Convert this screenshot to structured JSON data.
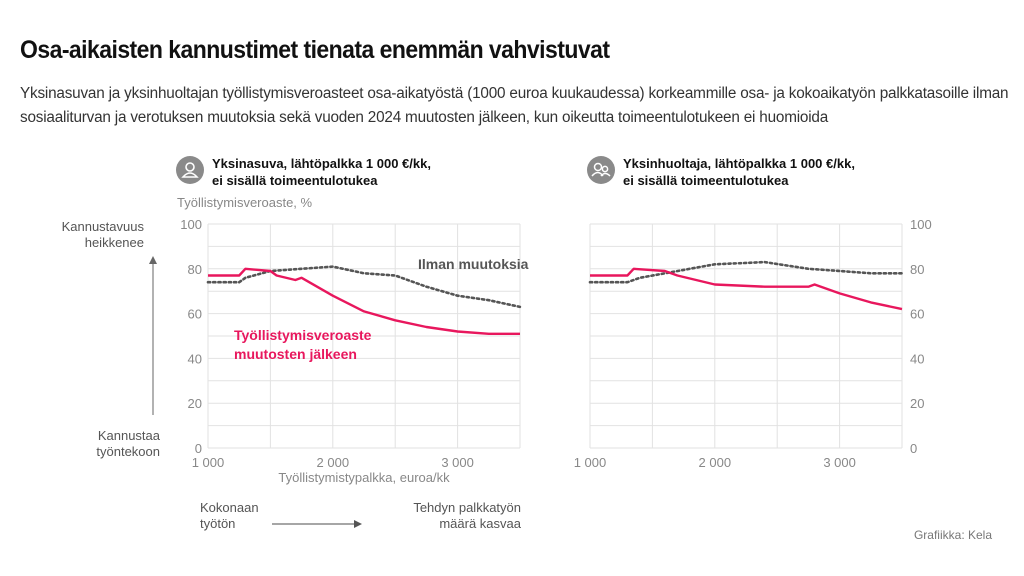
{
  "title": "Osa-aikaisten kannustimet tienata enemmän vahvistuvat",
  "subtitle": "Yksinasuvan ja yksinhuoltajan työllistymisveroasteet osa-aikatyöstä (1000 euroa kuukaudessa) korkeammille osa- ja kokoaikatyön palkkatasoille ilman sosiaaliturvan ja verotuksen muutoksia sekä vuoden 2024 muutosten jälkeen, kun oikeutta toimeentulotukeen ei huomioida",
  "y_axis_label": "Työllistymisveroaste, %",
  "x_axis_label": "Työllistymistypalkka, euroa/kk",
  "side_top": [
    "Kannustavuus",
    "heikkenee"
  ],
  "side_bottom": [
    "Kannustaa",
    "työntekoon"
  ],
  "bottom_left": [
    "Kokonaan",
    "työtön"
  ],
  "bottom_right": [
    "Tehdyn palkkatyön",
    "määrä kasvaa"
  ],
  "credit": "Grafiikka: Kela",
  "colors": {
    "after": "#e8175d",
    "before": "#555555",
    "grid": "#e2e2e2",
    "icon": "#8a8a8a"
  },
  "chart_data": [
    {
      "type": "line",
      "title": [
        "Yksinasuva, lähtöpalkka 1 000 €/kk,",
        "ei sisällä toimeentulotukea"
      ],
      "icon": "person-icon",
      "xlim": [
        1000,
        3500
      ],
      "ylim": [
        0,
        100
      ],
      "x_ticks": [
        1000,
        2000,
        3000
      ],
      "x_tick_labels": [
        "1 000",
        "2 000",
        "3 000"
      ],
      "y_ticks": [
        0,
        20,
        40,
        60,
        80,
        100
      ],
      "y_tick_labels": [
        "0",
        "20",
        "40",
        "60",
        "80",
        "100"
      ],
      "y_axis_side": "left",
      "grid": true,
      "series": [
        {
          "name": "Ilman muutoksia",
          "style": "dotted",
          "x": [
            1000,
            1250,
            1300,
            1500,
            1750,
            2000,
            2250,
            2500,
            2750,
            3000,
            3250,
            3500
          ],
          "y": [
            74,
            74,
            76,
            79,
            80,
            81,
            78,
            77,
            72,
            68,
            66,
            63
          ]
        },
        {
          "name": "Työllistymisveroaste muutosten jälkeen",
          "style": "solid",
          "x": [
            1000,
            1250,
            1300,
            1500,
            1550,
            1700,
            1750,
            2000,
            2250,
            2500,
            2750,
            3000,
            3250,
            3500
          ],
          "y": [
            77,
            77,
            80,
            79,
            77,
            75,
            76,
            68,
            61,
            57,
            54,
            52,
            51,
            51
          ]
        }
      ]
    },
    {
      "type": "line",
      "title": [
        "Yksinhuoltaja, lähtöpalkka 1 000 €/kk,",
        "ei sisällä toimeentulotukea"
      ],
      "icon": "parent-child-icon",
      "xlim": [
        1000,
        3500
      ],
      "ylim": [
        0,
        100
      ],
      "x_ticks": [
        1000,
        2000,
        3000
      ],
      "x_tick_labels": [
        "1 000",
        "2 000",
        "3 000"
      ],
      "y_ticks": [
        0,
        20,
        40,
        60,
        80,
        100
      ],
      "y_tick_labels": [
        "0",
        "20",
        "40",
        "60",
        "80",
        "100"
      ],
      "y_axis_side": "right",
      "grid": true,
      "series": [
        {
          "style": "dotted",
          "x": [
            1000,
            1300,
            1400,
            1600,
            2000,
            2400,
            2750,
            3000,
            3250,
            3500
          ],
          "y": [
            74,
            74,
            76,
            78,
            82,
            83,
            80,
            79,
            78,
            78
          ]
        },
        {
          "style": "solid",
          "x": [
            1000,
            1300,
            1350,
            1600,
            1700,
            2000,
            2400,
            2750,
            2800,
            3000,
            3250,
            3500
          ],
          "y": [
            77,
            77,
            80,
            79,
            77,
            73,
            72,
            72,
            73,
            69,
            65,
            62
          ]
        }
      ]
    }
  ]
}
